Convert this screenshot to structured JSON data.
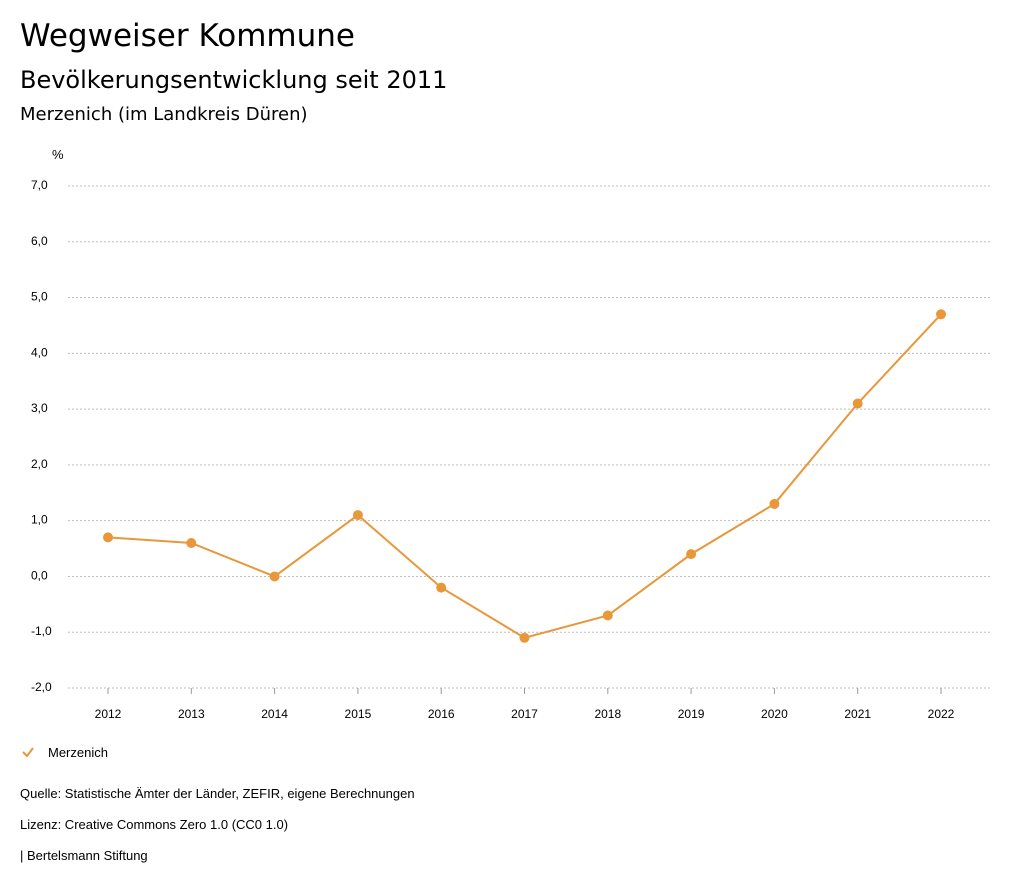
{
  "header": {
    "title": "Wegweiser Kommune",
    "subtitle": "Bevölkerungsentwicklung seit 2011",
    "region": "Merzenich (im Landkreis Düren)"
  },
  "chart_data": {
    "type": "line",
    "ylabel": "%",
    "xlabel": "",
    "ylim": [
      -2.0,
      7.0
    ],
    "y_ticks": [
      "7,0",
      "6,0",
      "5,0",
      "4,0",
      "3,0",
      "2,0",
      "1,0",
      "0,0",
      "-1,0",
      "-2,0"
    ],
    "y_tick_values": [
      7,
      6,
      5,
      4,
      3,
      2,
      1,
      0,
      -1,
      -2
    ],
    "categories": [
      "2012",
      "2013",
      "2014",
      "2015",
      "2016",
      "2017",
      "2018",
      "2019",
      "2020",
      "2021",
      "2022"
    ],
    "series": [
      {
        "name": "Merzenich",
        "color": "#e8973a",
        "values": [
          0.7,
          0.6,
          0.0,
          1.1,
          -0.2,
          -1.1,
          -0.7,
          0.4,
          1.3,
          3.1,
          4.7
        ]
      }
    ],
    "grid": true,
    "legend": "bottom-left"
  },
  "legend": {
    "label": "Merzenich",
    "icon": "check-icon"
  },
  "footer": {
    "source": "Quelle: Statistische Ämter der Länder, ZEFIR, eigene Berechnungen",
    "license": "Lizenz: Creative Commons Zero 1.0 (CC0 1.0)",
    "publisher": "| Bertelsmann Stiftung"
  }
}
